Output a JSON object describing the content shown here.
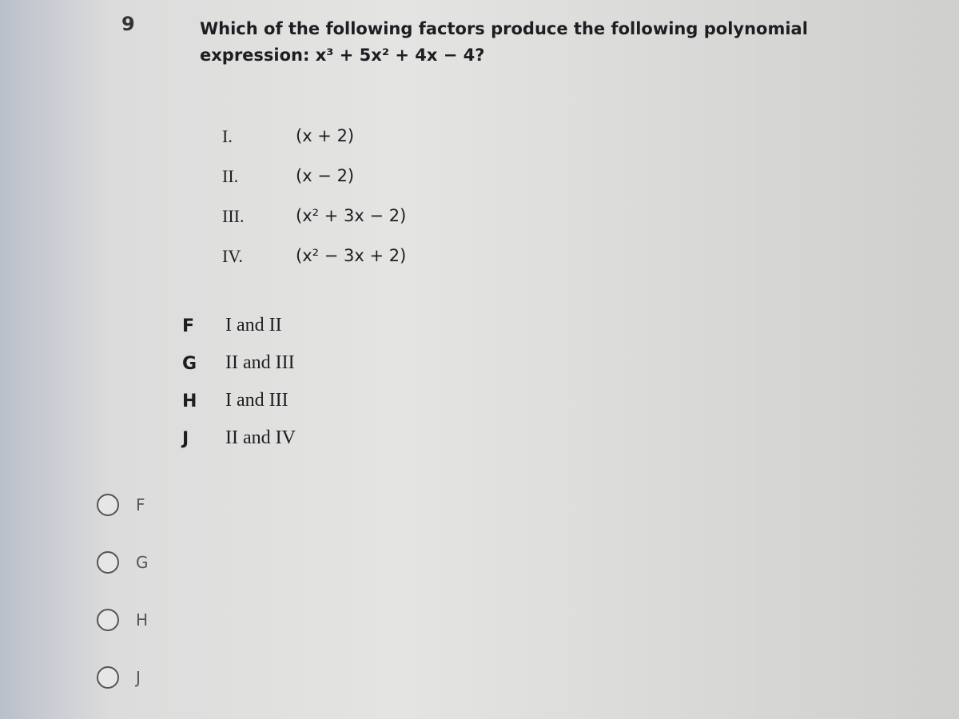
{
  "question": {
    "number": "9",
    "lines": [
      "Which of the following factors produce the following polynomial",
      "expression:  x³ + 5x² + 4x − 4?"
    ]
  },
  "factors": [
    {
      "numeral": "I.",
      "expression": "(x + 2)"
    },
    {
      "numeral": "II.",
      "expression": "(x − 2)"
    },
    {
      "numeral": "III.",
      "expression": "(x² + 3x − 2)"
    },
    {
      "numeral": "IV.",
      "expression": "(x² − 3x + 2)"
    }
  ],
  "choices": [
    {
      "letter": "F",
      "text": "I and II"
    },
    {
      "letter": "G",
      "text": "II and III"
    },
    {
      "letter": "H",
      "text": "I and III"
    },
    {
      "letter": "J",
      "text": "II and IV"
    }
  ],
  "options": [
    "F",
    "G",
    "H",
    "J"
  ]
}
